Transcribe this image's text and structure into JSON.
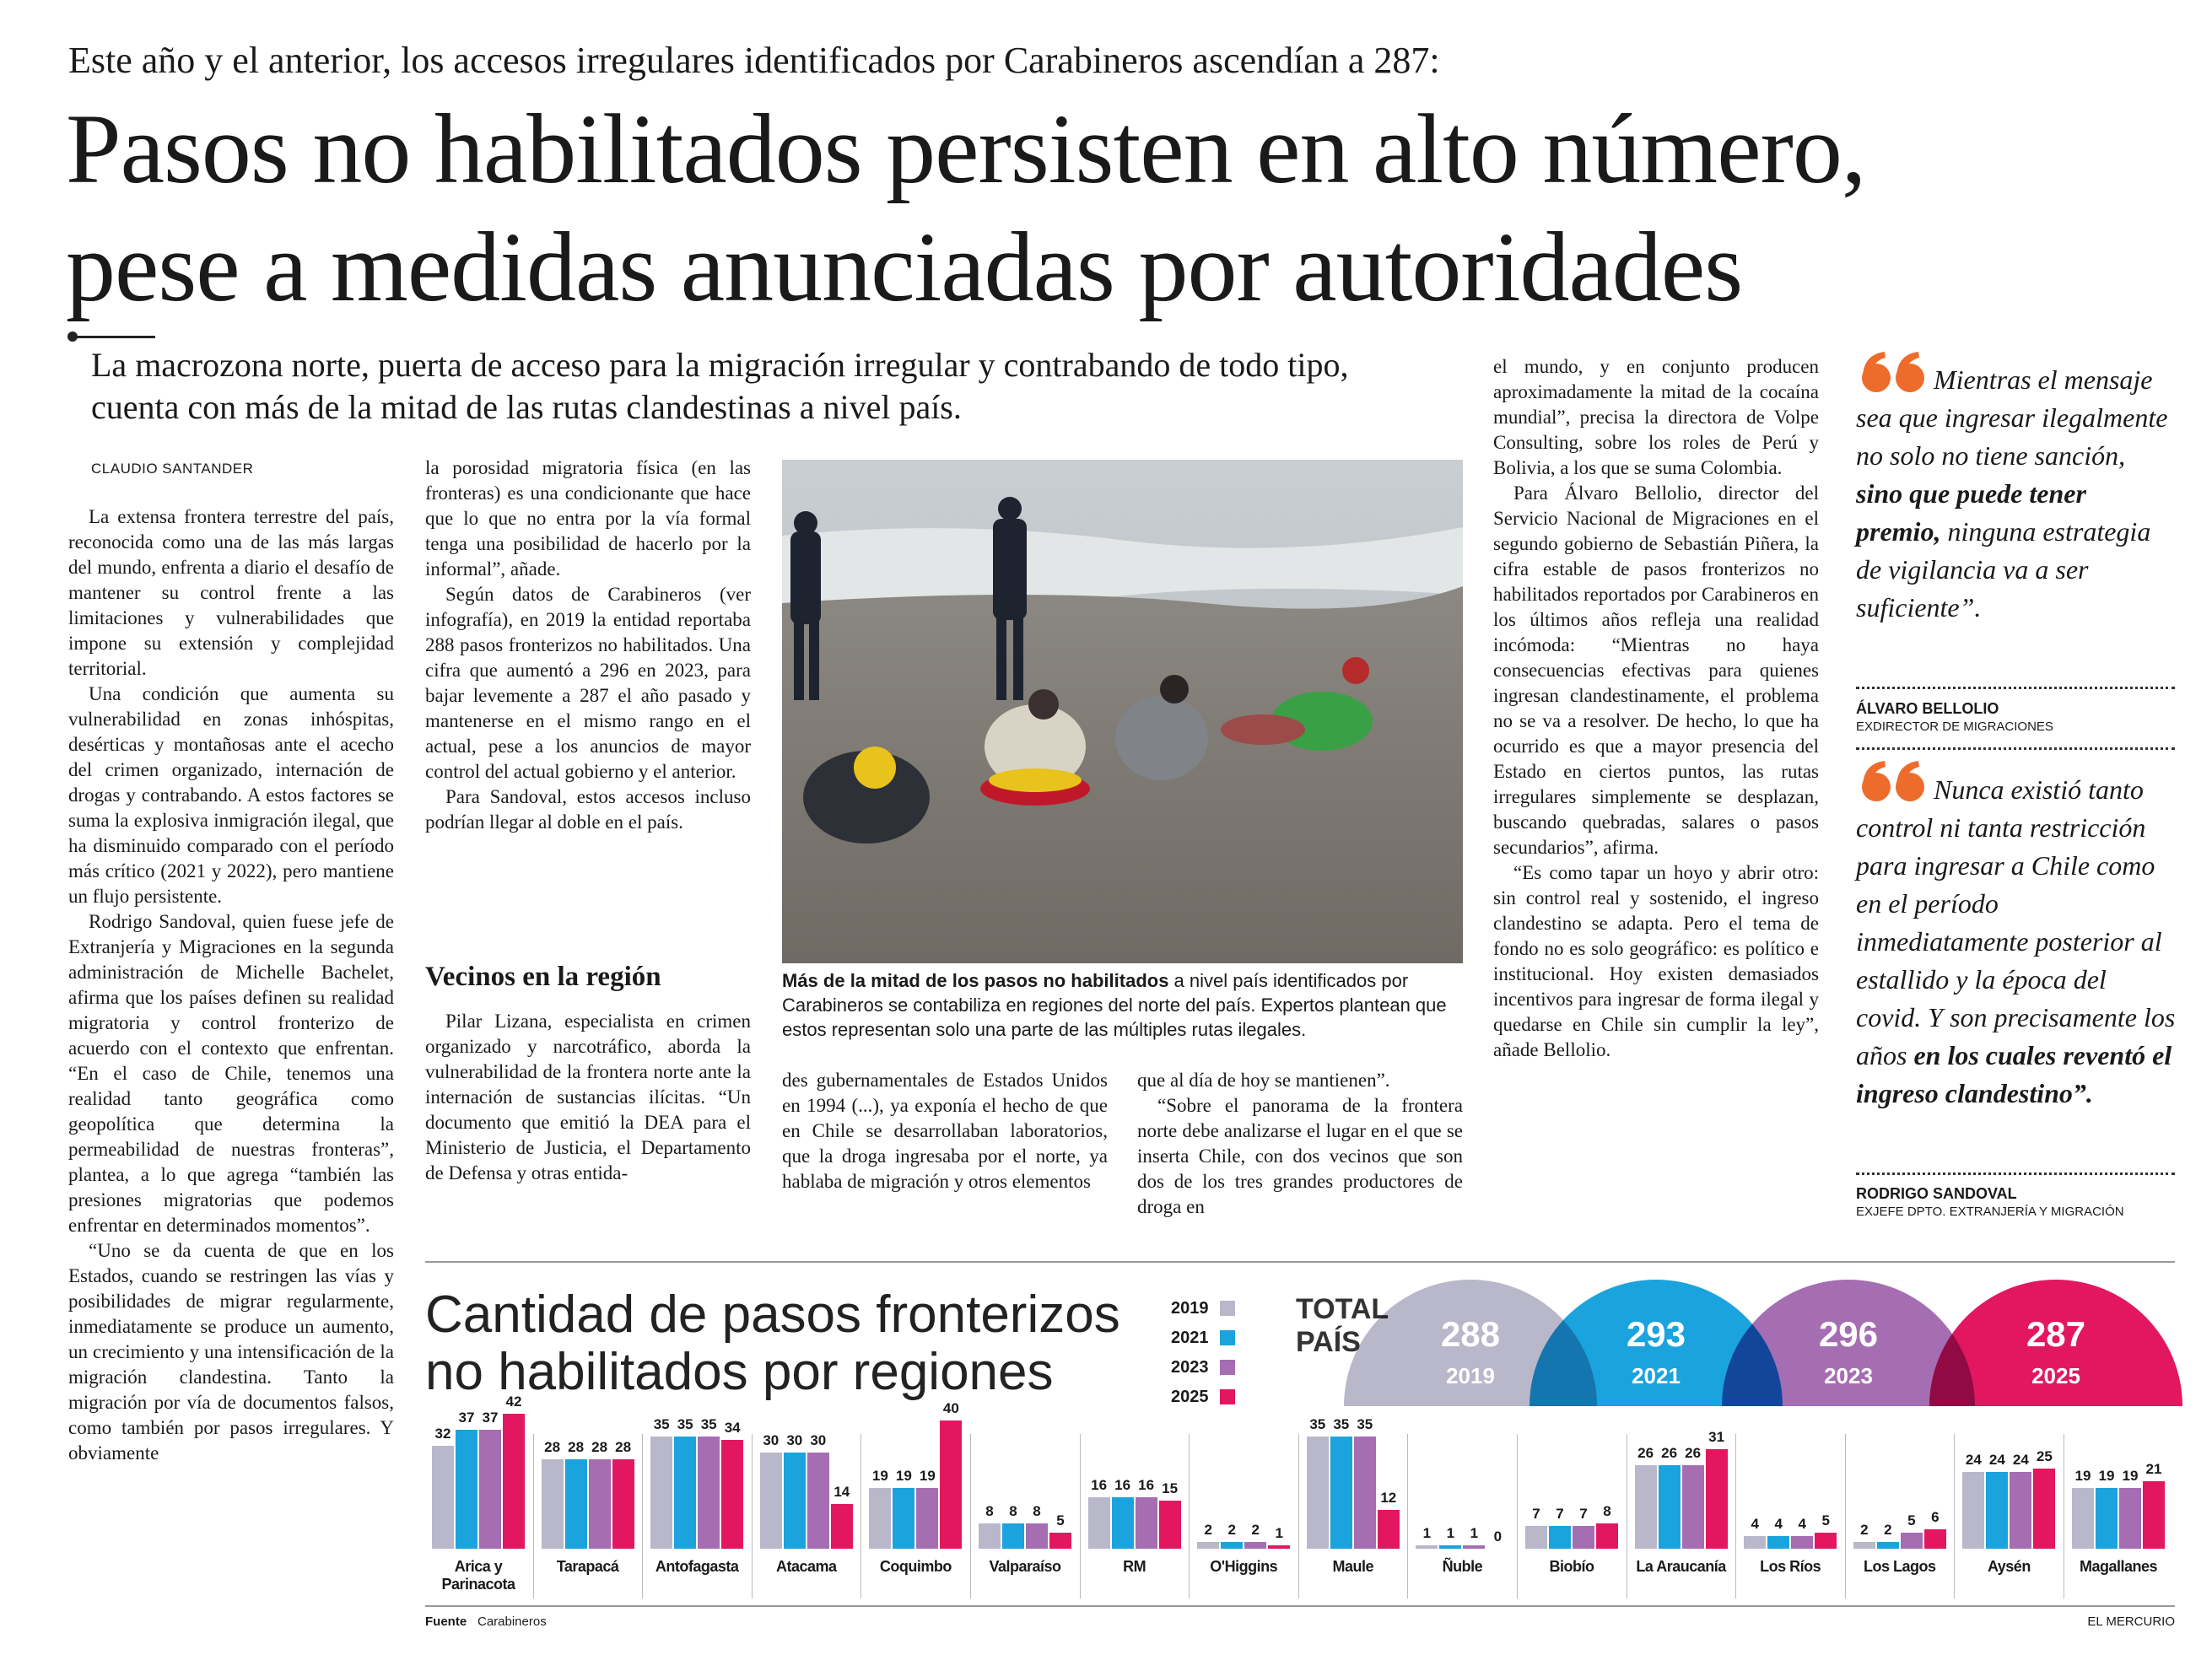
{
  "header": {
    "kicker": "Este año y el anterior, los accesos irregulares identificados por Carabineros ascendían a 287:",
    "headline": [
      "Pasos no habilitados persisten en alto número,",
      "pese a medidas anunciadas por autoridades"
    ],
    "deck": "La macrozona norte, puerta de acceso para la migración irregular y contrabando de todo tipo, cuenta con más de la mitad de las rutas clandestinas a nivel país.",
    "byline": "CLAUDIO SANTANDER"
  },
  "article": {
    "subhead": "Vecinos en la región",
    "columns": [
      [
        "La extensa frontera terrestre del país, reconocida como una de las más largas del mundo, enfrenta a diario el desafío de mantener su control frente a las limitaciones y vulnerabilidades que impone su extensión y complejidad territorial.",
        "Una condición que aumenta su vulnerabilidad en zonas inhóspitas, desérticas y montañosas ante el acecho del crimen organizado, internación de drogas y contrabando. A estos factores se suma la explosiva inmigración ilegal, que ha disminuido comparado con el período más crítico (2021 y 2022), pero mantiene un flujo persistente.",
        "Rodrigo Sandoval, quien fuese jefe de Extranjería y Migraciones en la segunda administración de Michelle Bachelet, afirma que los países definen su realidad migratoria y control fronterizo de acuerdo con el contexto que enfrentan. “En el caso de Chile, tenemos una realidad tanto geográfica como geopolítica que determina la permeabilidad de nuestras fronteras”, plantea, a lo que agrega “también las presiones migratorias que podemos enfrentar en determinados momentos”.",
        "“Uno se da cuenta de que en los Estados, cuando se restringen las vías y posibilidades de migrar regularmente, inmediatamente se produce un aumento, un crecimiento y una intensificación de la migración clandestina. Tanto la migración por vía de documentos falsos, como también por pasos irregulares. Y obviamente"
      ],
      [
        "la porosidad migratoria física (en las fronteras) es una condicionante que hace que lo que no entra por la vía formal tenga una posibilidad de hacerlo por la informal”, añade.",
        "Según datos de Carabineros (ver infografía), en 2019 la entidad reportaba 288 pasos fronterizos no habilitados. Una cifra que aumentó a 296 en 2023, para bajar levemente a 287 el año pasado y mantenerse en el mismo rango en el actual, pese a los anuncios de mayor control del actual gobierno y el anterior.",
        "Para Sandoval, estos accesos incluso podrían llegar al doble en el país."
      ],
      [
        "Pilar Lizana, especialista en crimen organizado y narcotráfico, aborda la vulnerabilidad de la frontera norte ante la internación de sustancias ilícitas. “Un documento que emitió la DEA para el Ministerio de Justicia, el Departamento de Defensa y otras entida-"
      ],
      [
        "des gubernamentales de Estados Unidos en 1994 (...), ya exponía el hecho de que en Chile se desarrollaban laboratorios, que la droga ingresaba por el norte, ya hablaba de migración y otros elementos"
      ],
      [
        "que al día de hoy se mantienen”.",
        "“Sobre el panorama de la frontera norte debe analizarse el lugar en el que se inserta Chile, con dos vecinos que son dos de los tres grandes productores de droga en"
      ],
      [
        "el mundo, y en conjunto producen aproximadamente la mitad de la cocaína mundial”, precisa la directora de Volpe Consulting, sobre los roles de Perú y Bolivia, a los que se suma Colombia.",
        "Para Álvaro Bellolio, director del Servicio Nacional de Migraciones en el segundo gobierno de Sebastián Piñera, la cifra estable de pasos fronterizos no habilitados reportados por Carabineros en los últimos años refleja una realidad incómoda: “Mientras no haya consecuencias efectivas para quienes ingresan clandestinamente, el problema no se va a resolver. De hecho, lo que ha ocurrido es que a mayor presencia del Estado en ciertos puntos, las rutas irregulares simplemente se desplazan, buscando quebradas, salares o pasos secundarios”, afirma.",
        "“Es como tapar un hoyo y abrir otro: sin control real y sostenido, el ingreso clandestino se adapta. Pero el tema de fondo no es solo geográfico: es político e institucional. Hoy existen demasiados incentivos para ingresar de forma ilegal y quedarse en Chile sin cumplir la ley”, añade Bellolio."
      ]
    ]
  },
  "photo": {
    "caption": [
      {
        "strong": "Más de la mitad de los pasos no habilitados"
      },
      {
        "text": " a nivel país identificados por Carabineros se contabiliza en regiones del norte del país. Expertos plantean que estos representan solo una parte de las múltiples rutas ilegales."
      }
    ]
  },
  "quotes": [
    {
      "segments": [
        {
          "text": "Mientras el mensaje sea que ingresar ilegalmente no solo no tiene sanción, "
        },
        {
          "strong": "sino que puede tener premio,"
        },
        {
          "text": " ninguna estrategia de vigilancia va a ser suficiente”."
        }
      ],
      "name": "ÁLVARO BELLOLIO",
      "role": "EXDIRECTOR DE MIGRACIONES"
    },
    {
      "segments": [
        {
          "text": "Nunca existió tanto control ni tanta restricción para ingresar a Chile como en el período inmediatamente posterior al estallido y la época del covid. Y son precisamente los años "
        },
        {
          "strong": "en los cuales reventó el ingreso clandestino”."
        }
      ],
      "name": "RODRIGO SANDOVAL",
      "role": "EXJEFE DPTO. EXTRANJERÍA Y MIGRACIÓN"
    }
  ],
  "chart_data": {
    "type": "bar",
    "title": [
      "Cantidad de pasos fronterizos",
      "no habilitados por regiones"
    ],
    "categories": [
      "Arica y Parinacota",
      "Tarapacá",
      "Antofagasta",
      "Atacama",
      "Coquimbo",
      "Valparaíso",
      "RM",
      "O'Higgins",
      "Maule",
      "Ñuble",
      "Biobío",
      "La Araucanía",
      "Los Ríos",
      "Los Lagos",
      "Aysén",
      "Magallanes"
    ],
    "series": [
      {
        "name": "2019",
        "color": "#b9b7ca",
        "values": [
          32,
          28,
          35,
          30,
          19,
          8,
          16,
          2,
          35,
          1,
          7,
          26,
          4,
          2,
          24,
          19
        ]
      },
      {
        "name": "2021",
        "color": "#1ba3dd",
        "values": [
          37,
          28,
          35,
          30,
          19,
          8,
          16,
          2,
          35,
          1,
          7,
          26,
          4,
          2,
          24,
          19
        ]
      },
      {
        "name": "2023",
        "color": "#a56db2",
        "values": [
          37,
          28,
          35,
          30,
          19,
          8,
          16,
          2,
          35,
          1,
          7,
          26,
          4,
          5,
          24,
          19
        ]
      },
      {
        "name": "2025",
        "color": "#e2175f",
        "values": [
          42,
          28,
          34,
          14,
          40,
          5,
          15,
          1,
          12,
          0,
          8,
          31,
          5,
          6,
          25,
          21
        ]
      }
    ],
    "total_label": [
      "TOTAL",
      "PAÍS"
    ],
    "totals": [
      288,
      293,
      296,
      287
    ]
  },
  "footer": {
    "source_label": "Fuente",
    "source": "Carabineros",
    "publisher": "EL MERCURIO"
  }
}
